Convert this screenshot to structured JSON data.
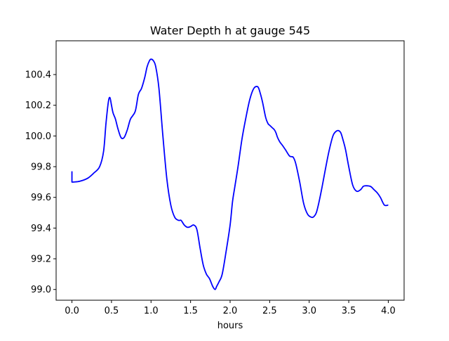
{
  "chart_data": {
    "type": "line",
    "title": "Water Depth h at gauge 545",
    "xlabel": "hours",
    "ylabel": "",
    "xlim": [
      -0.2,
      4.2
    ],
    "ylim": [
      98.93,
      100.62
    ],
    "xticks": [
      0.0,
      0.5,
      1.0,
      1.5,
      2.0,
      2.5,
      3.0,
      3.5,
      4.0
    ],
    "xtick_labels": [
      "0.0",
      "0.5",
      "1.0",
      "1.5",
      "2.0",
      "2.5",
      "3.0",
      "3.5",
      "4.0"
    ],
    "yticks": [
      99.0,
      99.2,
      99.4,
      99.6,
      99.8,
      100.0,
      100.2,
      100.4
    ],
    "ytick_labels": [
      "99.0",
      "99.2",
      "99.4",
      "99.6",
      "99.8",
      "100.0",
      "100.2",
      "100.4"
    ],
    "grid": false,
    "series": [
      {
        "color": "#0000ff",
        "x": [
          0.0,
          0.0,
          0.02,
          0.1,
          0.2,
          0.28,
          0.35,
          0.4,
          0.43,
          0.46,
          0.48,
          0.5,
          0.52,
          0.55,
          0.58,
          0.62,
          0.66,
          0.7,
          0.74,
          0.8,
          0.84,
          0.88,
          0.92,
          0.95,
          0.98,
          1.0,
          1.03,
          1.06,
          1.1,
          1.15,
          1.2,
          1.25,
          1.3,
          1.35,
          1.38,
          1.42,
          1.46,
          1.5,
          1.54,
          1.58,
          1.62,
          1.66,
          1.7,
          1.74,
          1.78,
          1.81,
          1.83,
          1.86,
          1.9,
          1.95,
          2.0,
          2.03,
          2.06,
          2.1,
          2.15,
          2.2,
          2.25,
          2.3,
          2.35,
          2.38,
          2.41,
          2.45,
          2.48,
          2.5,
          2.53,
          2.56,
          2.58,
          2.6,
          2.63,
          2.66,
          2.7,
          2.75,
          2.78,
          2.8,
          2.83,
          2.88,
          2.93,
          2.98,
          3.03,
          3.06,
          3.09,
          3.12,
          3.16,
          3.2,
          3.25,
          3.3,
          3.34,
          3.37,
          3.4,
          3.43,
          3.46,
          3.5,
          3.55,
          3.6,
          3.65,
          3.68,
          3.7,
          3.74,
          3.78,
          3.82,
          3.86,
          3.9,
          3.95,
          4.0
        ],
        "y": [
          99.77,
          99.7,
          99.7,
          99.705,
          99.725,
          99.76,
          99.8,
          99.9,
          100.08,
          100.22,
          100.25,
          100.2,
          100.15,
          100.11,
          100.05,
          99.99,
          99.99,
          100.04,
          100.11,
          100.16,
          100.27,
          100.31,
          100.38,
          100.45,
          100.49,
          100.5,
          100.49,
          100.45,
          100.31,
          100.0,
          99.72,
          99.55,
          99.47,
          99.45,
          99.45,
          99.42,
          99.405,
          99.41,
          99.42,
          99.39,
          99.27,
          99.16,
          99.1,
          99.07,
          99.02,
          99.0,
          99.02,
          99.05,
          99.1,
          99.25,
          99.42,
          99.57,
          99.67,
          99.8,
          99.98,
          100.12,
          100.24,
          100.31,
          100.32,
          100.28,
          100.22,
          100.12,
          100.08,
          100.07,
          100.055,
          100.04,
          100.02,
          99.99,
          99.96,
          99.94,
          99.91,
          99.87,
          99.865,
          99.86,
          99.82,
          99.7,
          99.56,
          99.49,
          99.47,
          99.475,
          99.5,
          99.56,
          99.66,
          99.77,
          99.9,
          100.0,
          100.03,
          100.035,
          100.02,
          99.97,
          99.91,
          99.8,
          99.68,
          99.64,
          99.65,
          99.67,
          99.675,
          99.675,
          99.67,
          99.65,
          99.63,
          99.6,
          99.55,
          99.55
        ]
      }
    ]
  }
}
